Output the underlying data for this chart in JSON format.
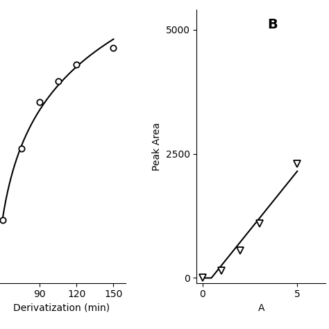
{
  "panel_A": {
    "x": [
      60,
      75,
      90,
      105,
      120,
      150
    ],
    "y": [
      0.45,
      0.62,
      0.73,
      0.78,
      0.82,
      0.86
    ],
    "xlabel": "Derivatization (min)",
    "xlim": [
      55,
      160
    ],
    "ylim": [
      0.3,
      0.95
    ],
    "xticks": [
      90,
      120,
      150
    ],
    "yticks": [],
    "marker": "o",
    "markersize": 6,
    "linewidth": 1.5,
    "color": "black"
  },
  "panel_B": {
    "label": "B",
    "x": [
      0,
      1,
      2,
      3,
      5
    ],
    "y": [
      0,
      150,
      550,
      1100,
      2300
    ],
    "xlabel": "A",
    "ylabel": "Peak Area",
    "xlim": [
      -0.3,
      6.5
    ],
    "ylim": [
      -100,
      5400
    ],
    "xticks": [
      0,
      5
    ],
    "yticks": [
      0,
      2500,
      5000
    ],
    "marker": "v",
    "markersize": 7,
    "linewidth": 1.5,
    "color": "black"
  },
  "background_color": "#ffffff",
  "label_fontsize": 10,
  "tick_fontsize": 10,
  "panel_label_fontsize": 14
}
